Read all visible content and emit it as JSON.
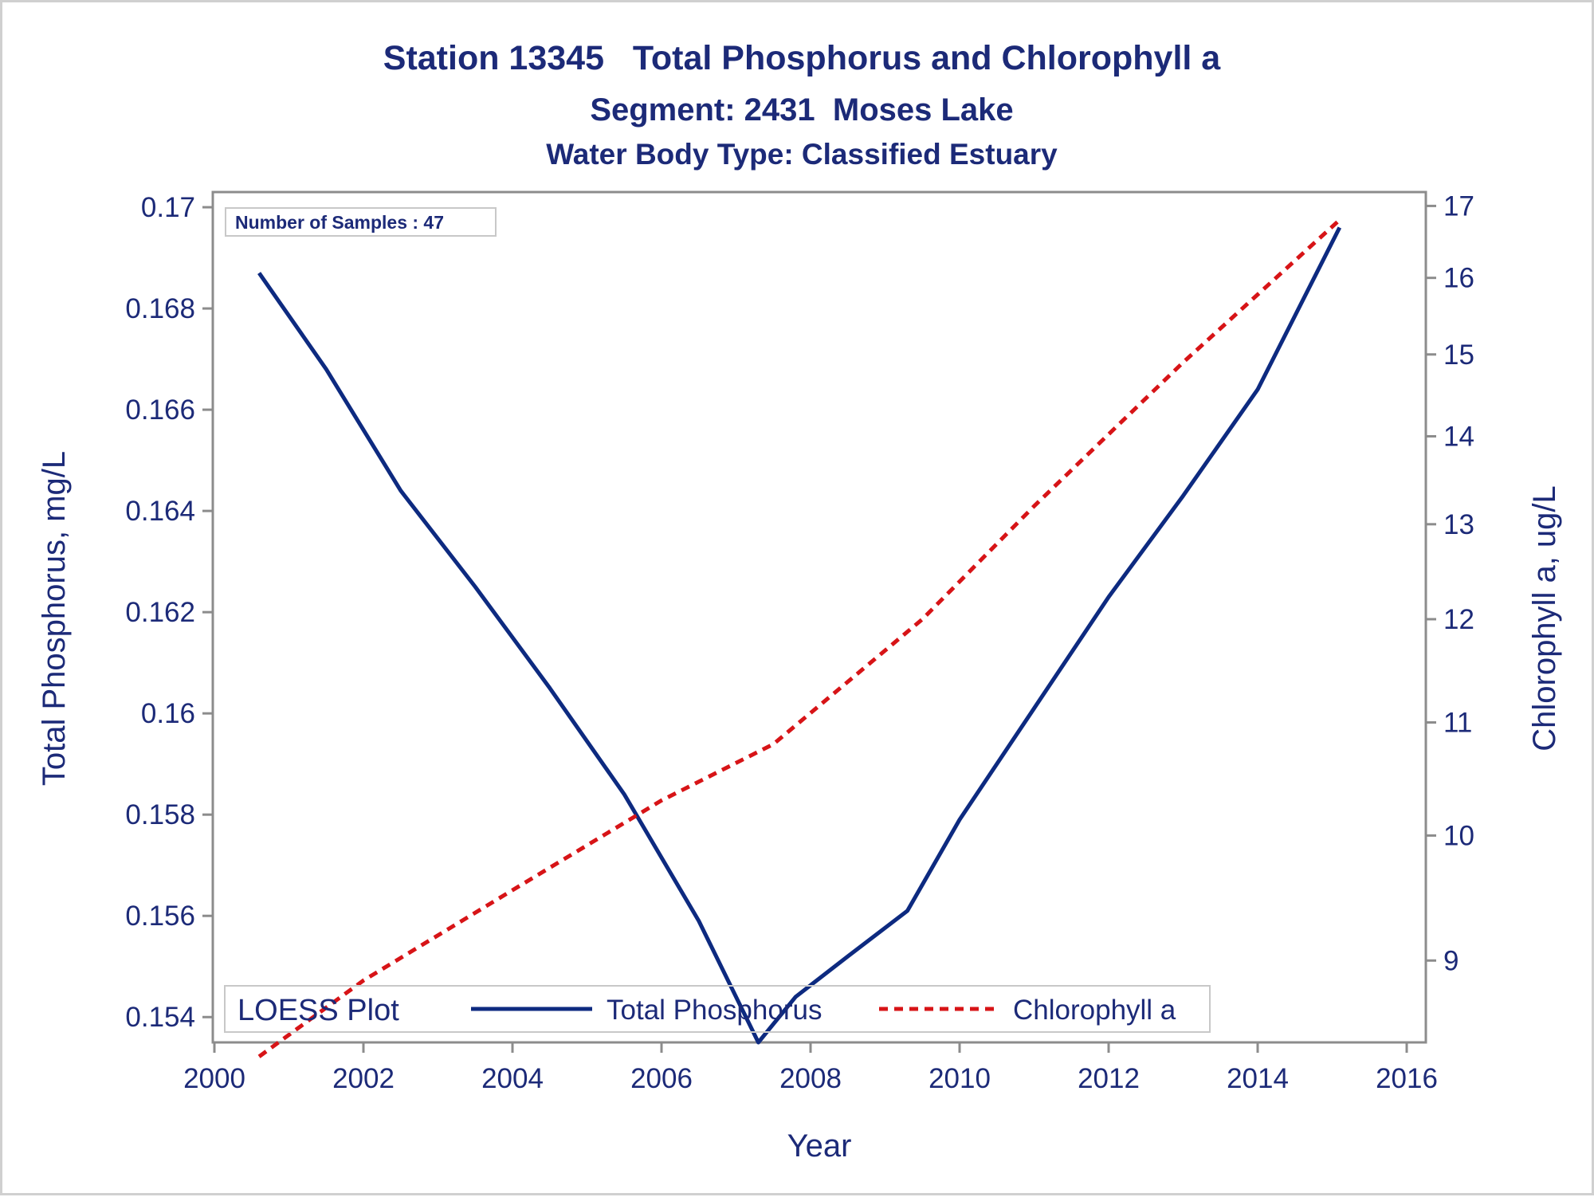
{
  "colors": {
    "text": "#1c2a78",
    "axis": "#8c8c8c",
    "phosphorus": "#0d2a80",
    "chlorophyll": "#d71417",
    "inset_border": "#c8c8c8"
  },
  "chart_data": {
    "type": "line",
    "title": "Station 13345   Total Phosphorus and Chlorophyll a",
    "subtitle": "Segment: 2431  Moses Lake",
    "subtitle2": "Water Body Type: Classified Estuary",
    "xlabel": "Year",
    "ylabel_left": "Total Phosphorus, mg/L",
    "ylabel_right": "Chlorophyll a, ug/L",
    "inset_label": "Number of Samples : 47",
    "legend": {
      "title": "LOESS Plot",
      "placement": "bottom-left inside"
    },
    "grid": false,
    "x_axis": {
      "range": [
        2000,
        2016
      ],
      "ticks": [
        "2000",
        "2002",
        "2004",
        "2006",
        "2008",
        "2010",
        "2012",
        "2014",
        "2016"
      ]
    },
    "y_left": {
      "range": [
        0.1535,
        0.1703
      ],
      "ticks": [
        "0.154",
        "0.156",
        "0.158",
        "0.16",
        "0.162",
        "0.164",
        "0.166",
        "0.168",
        "0.17"
      ]
    },
    "y_right": {
      "scale": "log",
      "range": [
        8.4,
        17.2
      ],
      "ticks": [
        "9",
        "10",
        "11",
        "12",
        "13",
        "14",
        "15",
        "16",
        "17"
      ]
    },
    "series": [
      {
        "name": "Total Phosphorus",
        "axis": "left",
        "style": "solid",
        "x": [
          2000.6,
          2001.5,
          2002.5,
          2003.5,
          2004.5,
          2005.5,
          2006.5,
          2007.3,
          2007.8,
          2008.5,
          2009.3,
          2010.0,
          2011.0,
          2012.0,
          2013.0,
          2014.0,
          2015.1
        ],
        "y": [
          0.1687,
          0.1668,
          0.1644,
          0.1625,
          0.1605,
          0.1584,
          0.1559,
          0.1535,
          0.1544,
          0.1552,
          0.1561,
          0.1579,
          0.1601,
          0.1623,
          0.1643,
          0.1664,
          0.1696
        ]
      },
      {
        "name": "Chlorophyll a",
        "axis": "right",
        "style": "dashed",
        "x": [
          2000.6,
          2002.0,
          2004.0,
          2006.0,
          2007.5,
          2009.5,
          2011.0,
          2013.0,
          2015.1
        ],
        "y": [
          8.3,
          8.85,
          9.55,
          10.3,
          10.8,
          12.0,
          13.2,
          14.9,
          16.8
        ]
      }
    ]
  }
}
